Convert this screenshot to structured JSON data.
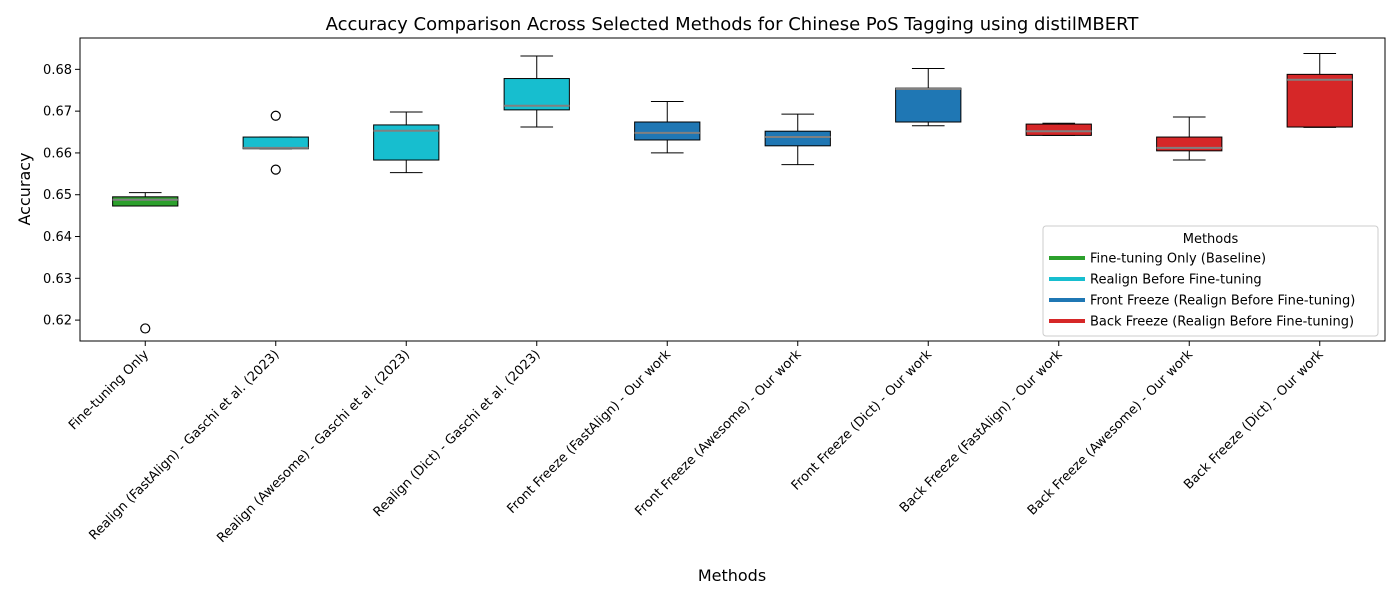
{
  "chart_data": {
    "type": "box",
    "title": "Accuracy Comparison Across Selected Methods for Chinese PoS Tagging using distilMBERT",
    "xlabel": "Methods",
    "ylabel": "Accuracy",
    "ylim": [
      0.615,
      0.6875
    ],
    "yticks": [
      0.62,
      0.63,
      0.64,
      0.65,
      0.66,
      0.67,
      0.68
    ],
    "ytick_labels": [
      "0.62",
      "0.63",
      "0.64",
      "0.65",
      "0.66",
      "0.67",
      "0.68"
    ],
    "grid": false,
    "legend": {
      "title": "Methods",
      "placement": "lower-right",
      "entries": [
        {
          "label": "Fine-tuning Only (Baseline)",
          "color": "#2ca02c"
        },
        {
          "label": "Realign Before Fine-tuning",
          "color": "#17becf"
        },
        {
          "label": "Front Freeze (Realign Before Fine-tuning)",
          "color": "#1f77b4"
        },
        {
          "label": "Back Freeze (Realign Before Fine-tuning)",
          "color": "#d62728"
        }
      ]
    },
    "median_color": "#808080",
    "boxes": [
      {
        "category": "Fine-tuning Only",
        "color": "#2ca02c",
        "whislo": 0.6473,
        "q1": 0.6473,
        "median": 0.6488,
        "q3": 0.6495,
        "whishi": 0.6505,
        "fliers": [
          0.618
        ]
      },
      {
        "category": "Realign (FastAlign) - Gaschi et al. (2023)",
        "color": "#17becf",
        "whislo": 0.661,
        "q1": 0.661,
        "median": 0.6612,
        "q3": 0.6638,
        "whishi": 0.6638,
        "fliers": [
          0.6689,
          0.656
        ]
      },
      {
        "category": "Realign (Awesome) - Gaschi et al. (2023)",
        "color": "#17becf",
        "whislo": 0.6553,
        "q1": 0.6583,
        "median": 0.6653,
        "q3": 0.6667,
        "whishi": 0.6698,
        "fliers": []
      },
      {
        "category": "Realign (Dict) - Gaschi et al. (2023)",
        "color": "#17becf",
        "whislo": 0.6662,
        "q1": 0.6703,
        "median": 0.6713,
        "q3": 0.6778,
        "whishi": 0.6832,
        "fliers": []
      },
      {
        "category": "Front Freeze (FastAlign) - Our work",
        "color": "#1f77b4",
        "whislo": 0.66,
        "q1": 0.6631,
        "median": 0.6648,
        "q3": 0.6674,
        "whishi": 0.6723,
        "fliers": []
      },
      {
        "category": "Front Freeze (Awesome) - Our work",
        "color": "#1f77b4",
        "whislo": 0.6572,
        "q1": 0.6617,
        "median": 0.6638,
        "q3": 0.6652,
        "whishi": 0.6693,
        "fliers": []
      },
      {
        "category": "Front Freeze (Dict) - Our work",
        "color": "#1f77b4",
        "whislo": 0.6665,
        "q1": 0.6674,
        "median": 0.6753,
        "q3": 0.6755,
        "whishi": 0.6802,
        "fliers": []
      },
      {
        "category": "Back Freeze (FastAlign) - Our work",
        "color": "#d62728",
        "whislo": 0.6642,
        "q1": 0.6642,
        "median": 0.6652,
        "q3": 0.6669,
        "whishi": 0.6671,
        "fliers": []
      },
      {
        "category": "Back Freeze (Awesome) - Our work",
        "color": "#d62728",
        "whislo": 0.6583,
        "q1": 0.6605,
        "median": 0.6612,
        "q3": 0.6638,
        "whishi": 0.6686,
        "fliers": []
      },
      {
        "category": "Back Freeze (Dict) - Our work",
        "color": "#d62728",
        "whislo": 0.6661,
        "q1": 0.6662,
        "median": 0.6775,
        "q3": 0.6788,
        "whishi": 0.6838,
        "fliers": []
      }
    ]
  }
}
